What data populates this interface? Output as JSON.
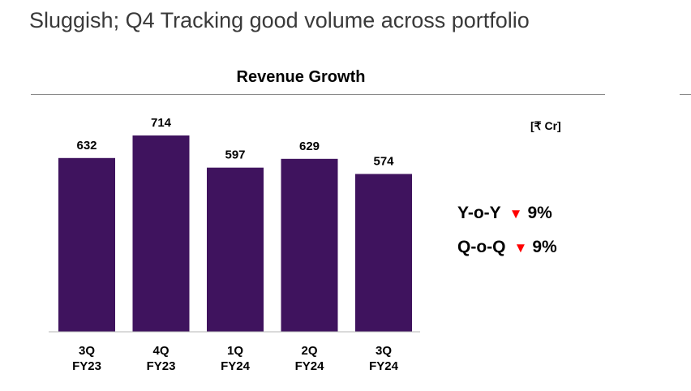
{
  "headline": "Sluggish; Q4 Tracking good volume across portfolio",
  "chart_data": {
    "type": "bar",
    "title": "Revenue Growth",
    "unit": "[₹ Cr]",
    "categories": [
      [
        "3Q",
        "FY23"
      ],
      [
        "4Q",
        "FY23"
      ],
      [
        "1Q",
        "FY24"
      ],
      [
        "2Q",
        "FY24"
      ],
      [
        "3Q",
        "FY24"
      ]
    ],
    "values": [
      632,
      714,
      597,
      629,
      574
    ],
    "ylim": [
      0,
      714
    ],
    "colors": {
      "bar": "#3f135e",
      "down_arrow": "#ff0000"
    }
  },
  "metrics": [
    {
      "label": "Y-o-Y",
      "arrow": "▼",
      "value": "9%"
    },
    {
      "label": "Q-o-Q",
      "arrow": "▼",
      "value": "9%"
    }
  ]
}
